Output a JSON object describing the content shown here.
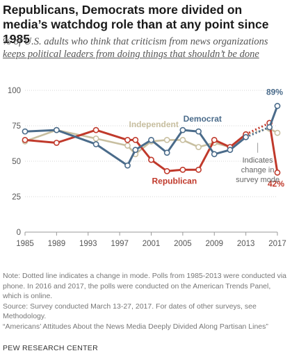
{
  "header": {
    "title": "Republicans, Democrats more divided on media’s watchdog role than at any point since 1985",
    "subtitle_pre": "% of U.S. adults who think that criticism from news organizations ",
    "subtitle_underlined": "keeps political leaders from doing things that shouldn’t be done"
  },
  "chart_data": {
    "type": "line",
    "title": "",
    "xlabel": "",
    "ylabel": "",
    "xlim": [
      1985,
      2017
    ],
    "ylim": [
      0,
      100
    ],
    "y_ticks": [
      0,
      25,
      50,
      75,
      100
    ],
    "x_ticks": [
      "1985",
      "1989",
      "1993",
      "1997",
      "2001",
      "2005",
      "2009",
      "2013",
      "2017"
    ],
    "x": [
      1985,
      1989,
      1994,
      1998,
      1999,
      2001,
      2003,
      2005,
      2007,
      2009,
      2011,
      2013,
      2016,
      2017
    ],
    "grid": true,
    "legend": "inline labels",
    "series": [
      {
        "name": "Democrat",
        "color": "#4a6b8a",
        "values": [
          71,
          72,
          62,
          47,
          58,
          65,
          56,
          72,
          71,
          55,
          58,
          67,
          74,
          89
        ]
      },
      {
        "name": "Republican",
        "color": "#c0392b",
        "values": [
          65,
          63,
          72,
          65,
          65,
          51,
          43,
          44,
          44,
          65,
          60,
          69,
          77,
          42
        ]
      },
      {
        "name": "Independent",
        "color": "#c8bfa0",
        "values": [
          64,
          72,
          66,
          61,
          55,
          64,
          65,
          65,
          60,
          63,
          60,
          69,
          73,
          70
        ]
      }
    ],
    "annotations": {
      "mode_change": "Indicates change in survey mode",
      "dem_last": "89%",
      "rep_last": "42%"
    }
  },
  "footer": {
    "notes": [
      "Note: Dotted line indicates a change in mode. Polls from 1985-2013 were conducted via phone. In 2016 and 2017, the polls were conducted on the American Trends Panel, which is online.",
      "Source: Survey conducted March 13-27, 2017. For dates of other surveys, see Methodology.",
      "“Americans’ Attitudes About the News Media Deeply Divided Along Partisan Lines”"
    ],
    "credit": "PEW RESEARCH CENTER"
  }
}
